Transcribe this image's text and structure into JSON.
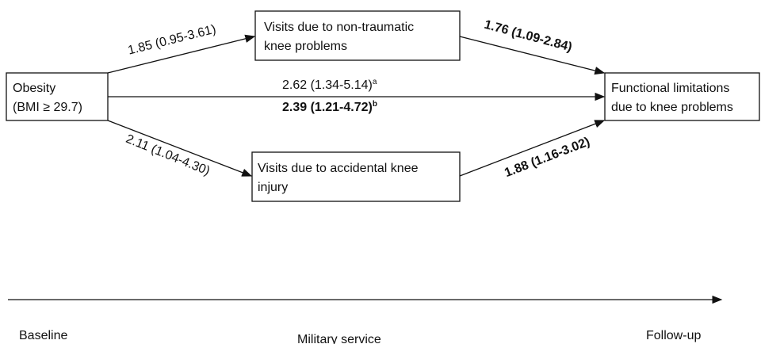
{
  "nodes": [
    {
      "id": "obesity",
      "lines": [
        "Obesity",
        "(BMI ≥ 29.7)"
      ]
    },
    {
      "id": "nontraumatic",
      "lines": [
        "Visits due to non-traumatic",
        "knee problems"
      ]
    },
    {
      "id": "accidental",
      "lines": [
        "Visits due to accidental knee",
        "injury"
      ]
    },
    {
      "id": "functional",
      "lines": [
        "Functional limitations",
        "due to knee problems"
      ]
    }
  ],
  "edges": [
    {
      "label": "1.85 (0.95-3.61)"
    },
    {
      "label": "1.76 (1.09-2.84)"
    },
    {
      "label": "2.62 (1.34-5.14)",
      "superscript": "a"
    },
    {
      "label": "2.39 (1.21-4.72)",
      "superscript": "b"
    },
    {
      "label": "2.11 (1.04-4.30)"
    },
    {
      "label": "1.88 (1.16-3.02)"
    }
  ],
  "timeline": [
    "Baseline",
    "Military service",
    "Follow-up"
  ]
}
